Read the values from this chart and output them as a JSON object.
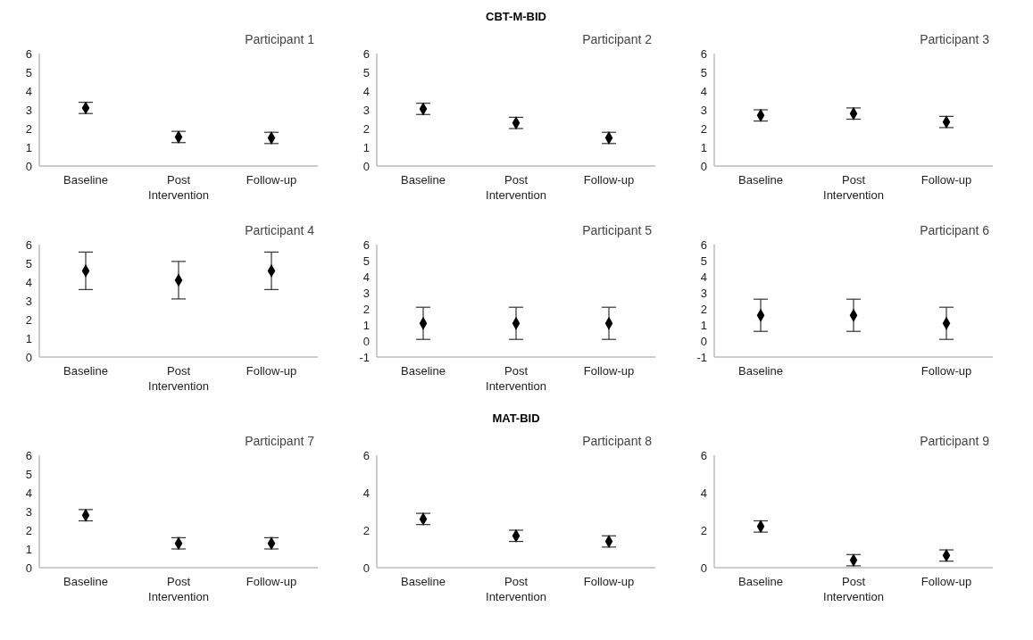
{
  "chart_data": [
    {
      "type": "scatter",
      "title": "Participant 1",
      "annotations": [
        "CBT-M-BID"
      ],
      "categories": [
        "Baseline",
        "Post Intervention",
        "Follow-up"
      ],
      "values": [
        3.1,
        1.55,
        1.5
      ],
      "errors": [
        0.3,
        0.3,
        0.3
      ],
      "color": "#000000",
      "marker": "diamond",
      "ylim": [
        0,
        6
      ],
      "yticks": [
        0,
        1,
        2,
        3,
        4,
        5,
        6
      ]
    },
    {
      "type": "scatter",
      "title": "Participant 2",
      "categories": [
        "Baseline",
        "Post Intervention",
        "Follow-up"
      ],
      "values": [
        3.05,
        2.3,
        1.5
      ],
      "errors": [
        0.3,
        0.3,
        0.3
      ],
      "color": "#000000",
      "marker": "diamond",
      "ylim": [
        0,
        6
      ],
      "yticks": [
        0,
        1,
        2,
        3,
        4,
        5,
        6
      ]
    },
    {
      "type": "scatter",
      "title": "Participant 3",
      "categories": [
        "Baseline",
        "Post Intervention",
        "Follow-up"
      ],
      "values": [
        2.7,
        2.8,
        2.35
      ],
      "errors": [
        0.3,
        0.3,
        0.3
      ],
      "color": "#000000",
      "marker": "diamond",
      "ylim": [
        0,
        6
      ],
      "yticks": [
        0,
        1,
        2,
        3,
        4,
        5,
        6
      ]
    },
    {
      "type": "scatter",
      "title": "Participant 4",
      "categories": [
        "Baseline",
        "Post Intervention",
        "Follow-up"
      ],
      "values": [
        4.6,
        4.1,
        4.6
      ],
      "errors": [
        1,
        1,
        1
      ],
      "color": "#000000",
      "marker": "diamond",
      "ylim": [
        0,
        6
      ],
      "yticks": [
        0,
        1,
        2,
        3,
        4,
        5,
        6
      ]
    },
    {
      "type": "scatter",
      "title": "Participant 5",
      "categories": [
        "Baseline",
        "Post Intervention",
        "Follow-up"
      ],
      "values": [
        1.1,
        1.1,
        1.1
      ],
      "errors": [
        1,
        1,
        1
      ],
      "color": "#000000",
      "marker": "diamond",
      "ylim": [
        -1,
        6
      ],
      "yticks": [
        -1,
        0,
        1,
        2,
        3,
        4,
        5,
        6
      ]
    },
    {
      "type": "scatter",
      "title": "Participant 6",
      "categories": [
        "Baseline",
        null,
        "Follow-up"
      ],
      "values": [
        1.6,
        1.6,
        1.1
      ],
      "errors": [
        1,
        1,
        1
      ],
      "color": "#000000",
      "marker": "diamond",
      "ylim": [
        -1,
        6
      ],
      "yticks": [
        -1,
        0,
        1,
        2,
        3,
        4,
        5,
        6
      ]
    },
    {
      "type": "scatter",
      "title": "Participant 7",
      "annotations": [
        "MAT-BID"
      ],
      "categories": [
        "Baseline",
        "Post Intervention",
        "Follow-up"
      ],
      "values": [
        2.8,
        1.3,
        1.3
      ],
      "errors": [
        0.3,
        0.3,
        0.3
      ],
      "color": "#000000",
      "marker": "diamond",
      "ylim": [
        0,
        6
      ],
      "yticks": [
        0,
        1,
        2,
        3,
        4,
        5,
        6
      ]
    },
    {
      "type": "scatter",
      "title": "Participant 8",
      "categories": [
        "Baseline",
        "Post Intervention",
        "Follow-up"
      ],
      "values": [
        2.6,
        1.7,
        1.4
      ],
      "errors": [
        0.3,
        0.3,
        0.3
      ],
      "color": "#000000",
      "marker": "diamond",
      "ylim": [
        0,
        6
      ],
      "yticks": [
        0,
        2,
        4,
        6
      ]
    },
    {
      "type": "scatter",
      "title": "Participant 9",
      "categories": [
        "Baseline",
        "Post Intervention",
        "Follow-up"
      ],
      "values": [
        2.2,
        0.4,
        0.65
      ],
      "errors": [
        0.3,
        0.3,
        0.3
      ],
      "color": "#000000",
      "marker": "diamond",
      "ylim": [
        0,
        6
      ],
      "yticks": [
        0,
        2,
        4,
        6
      ]
    }
  ]
}
